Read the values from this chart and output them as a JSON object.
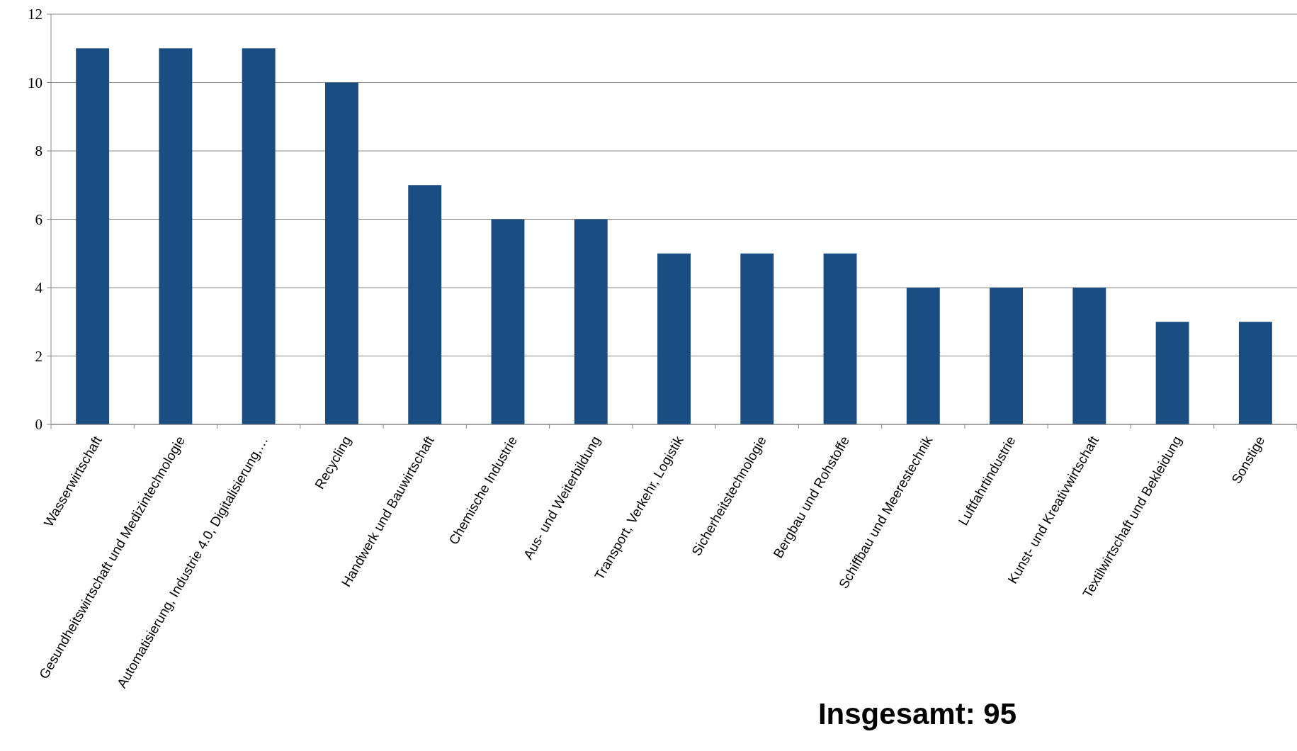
{
  "chart_data": {
    "type": "bar",
    "categories": [
      "Wasserwirtschaft",
      "Gesundheitswirtschaft und Medizintechnologie",
      "Automatisierung, Industrie 4.0, Digitalisierung,…",
      "Recycling",
      "Handwerk und Bauwirtschaft",
      "Chemische Industrie",
      "Aus- und Weiterbildung",
      "Transport, Verkehr, Logistik",
      "Sicherheitstechnologie",
      "Bergbau und Rohstoffe",
      "Schiffbau und Meerestechnik",
      "Luftfahrtindustrie",
      "Kunst- und Kreativwirtschaft",
      "Textilwirtschaft und Bekleidung",
      "Sonstige"
    ],
    "values": [
      11,
      11,
      11,
      10,
      7,
      6,
      6,
      5,
      5,
      5,
      4,
      4,
      4,
      3,
      3
    ],
    "color": "#1a4e82",
    "ylim": [
      0,
      12
    ],
    "yticks": [
      0,
      2,
      4,
      6,
      8,
      10,
      12
    ],
    "grid": "y",
    "annotations": [
      "Insgesamt: 95"
    ]
  }
}
